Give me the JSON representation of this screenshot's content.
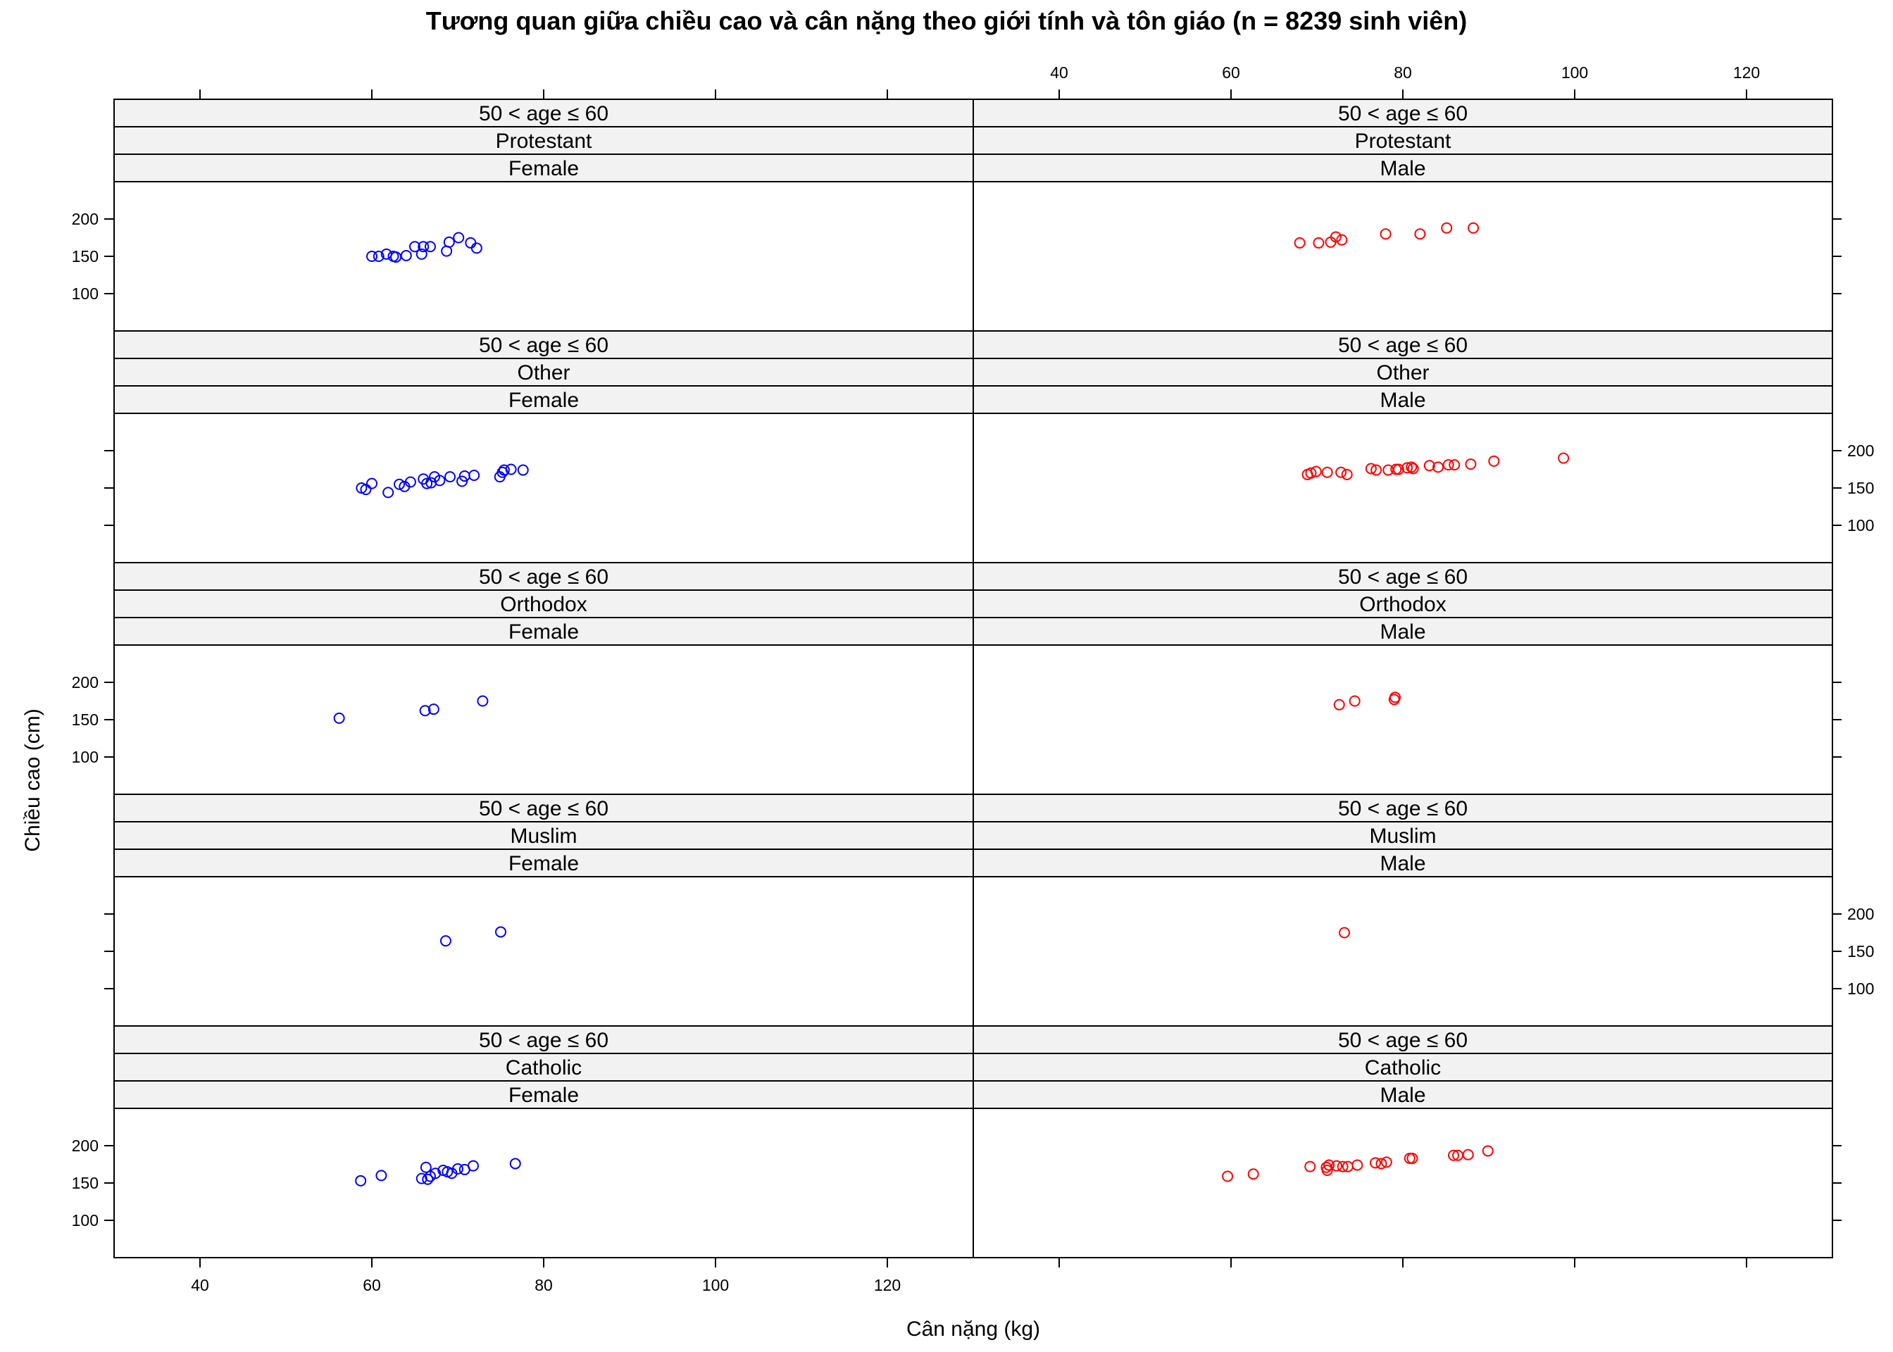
{
  "chart_data": {
    "type": "scatter",
    "title": "Tương quan giữa chiều cao và cân nặng theo giới tính và tôn giáo (n = 8239 sinh viên)",
    "xlabel": "Cân nặng (kg)",
    "ylabel": "Chiều cao (cm)",
    "xlim": [
      30,
      130
    ],
    "ylim": [
      50,
      250
    ],
    "x_ticks": [
      40,
      60,
      80,
      100,
      120
    ],
    "y_ticks": [
      100,
      150,
      200
    ],
    "grid": false,
    "colors": {
      "Female": "#0000ff",
      "Male": "#ff0000"
    },
    "marker": "open-circle",
    "panels": [
      {
        "age": "50 < age ≤ 60",
        "religion": "Protestant",
        "gender": "Female",
        "x": [
          60,
          60.8,
          61.7,
          62.5,
          62.8,
          64,
          65,
          65.8,
          66,
          66.8,
          68.7,
          69,
          70.1,
          71.5,
          72.2
        ],
        "y": [
          150,
          150,
          153,
          150,
          149,
          151,
          163,
          153,
          163,
          163,
          157,
          169,
          175,
          168,
          161
        ]
      },
      {
        "age": "50 < age ≤ 60",
        "religion": "Protestant",
        "gender": "Male",
        "x": [
          68,
          70.2,
          71.6,
          72.2,
          72.9,
          78,
          82,
          85.1,
          88.2
        ],
        "y": [
          168,
          168,
          169,
          176,
          172,
          180,
          180,
          188,
          188
        ]
      },
      {
        "age": "50 < age ≤ 60",
        "religion": "Other",
        "gender": "Female",
        "x": [
          58.8,
          59.3,
          60,
          61.9,
          63.2,
          63.8,
          64.5,
          66,
          66.4,
          66.9,
          67.3,
          67.9,
          69.1,
          70.5,
          70.8,
          71.9,
          74.9,
          75.2,
          75.4,
          76.2,
          77.6
        ],
        "y": [
          150,
          148,
          156,
          144,
          155,
          152,
          158,
          162,
          156,
          157,
          165,
          160,
          165,
          159,
          166,
          167,
          165,
          171,
          174,
          175,
          174
        ]
      },
      {
        "age": "50 < age ≤ 60",
        "religion": "Other",
        "gender": "Male",
        "x": [
          68.9,
          69.3,
          69.9,
          71.2,
          72.8,
          73.5,
          76.3,
          76.9,
          78.3,
          79.2,
          79.5,
          80.5,
          81,
          81.2,
          83.1,
          84.1,
          85.3,
          86,
          87.9,
          90.6,
          98.7
        ],
        "y": [
          168,
          170,
          172,
          171,
          171,
          168,
          176,
          174,
          174,
          175,
          175,
          177,
          178,
          176,
          180,
          178,
          181,
          181,
          182,
          186,
          190
        ]
      },
      {
        "age": "50 < age ≤ 60",
        "religion": "Orthodox",
        "gender": "Female",
        "x": [
          56.2,
          66.2,
          67.2,
          72.9
        ],
        "y": [
          152,
          162,
          164,
          175
        ]
      },
      {
        "age": "50 < age ≤ 60",
        "religion": "Orthodox",
        "gender": "Male",
        "x": [
          72.6,
          74.4,
          79,
          79.1
        ],
        "y": [
          170,
          175,
          177,
          180
        ]
      },
      {
        "age": "50 < age ≤ 60",
        "religion": "Muslim",
        "gender": "Female",
        "x": [
          68.6,
          75
        ],
        "y": [
          164,
          176
        ]
      },
      {
        "age": "50 < age ≤ 60",
        "religion": "Muslim",
        "gender": "Male",
        "x": [
          73.2
        ],
        "y": [
          175
        ]
      },
      {
        "age": "50 < age ≤ 60",
        "religion": "Catholic",
        "gender": "Female",
        "x": [
          58.7,
          61.1,
          65.8,
          66.3,
          66.5,
          66.8,
          67.4,
          68.3,
          68.8,
          69.3,
          70,
          70.8,
          71.8,
          76.7
        ],
        "y": [
          153,
          160,
          156,
          171,
          155,
          159,
          163,
          167,
          165,
          163,
          169,
          168,
          173,
          176
        ]
      },
      {
        "age": "50 < age ≤ 60",
        "religion": "Catholic",
        "gender": "Male",
        "x": [
          59.6,
          62.6,
          69.2,
          71.1,
          71.4,
          71.2,
          72.3,
          73,
          73.6,
          74.7,
          76.8,
          77.5,
          78.1,
          80.8,
          81.1,
          85.9,
          86.4,
          87.6,
          89.9
        ],
        "y": [
          159,
          162,
          172,
          171,
          174,
          167,
          173,
          172,
          172,
          174,
          177,
          176,
          178,
          183,
          183,
          187,
          187,
          188,
          193
        ]
      }
    ]
  }
}
